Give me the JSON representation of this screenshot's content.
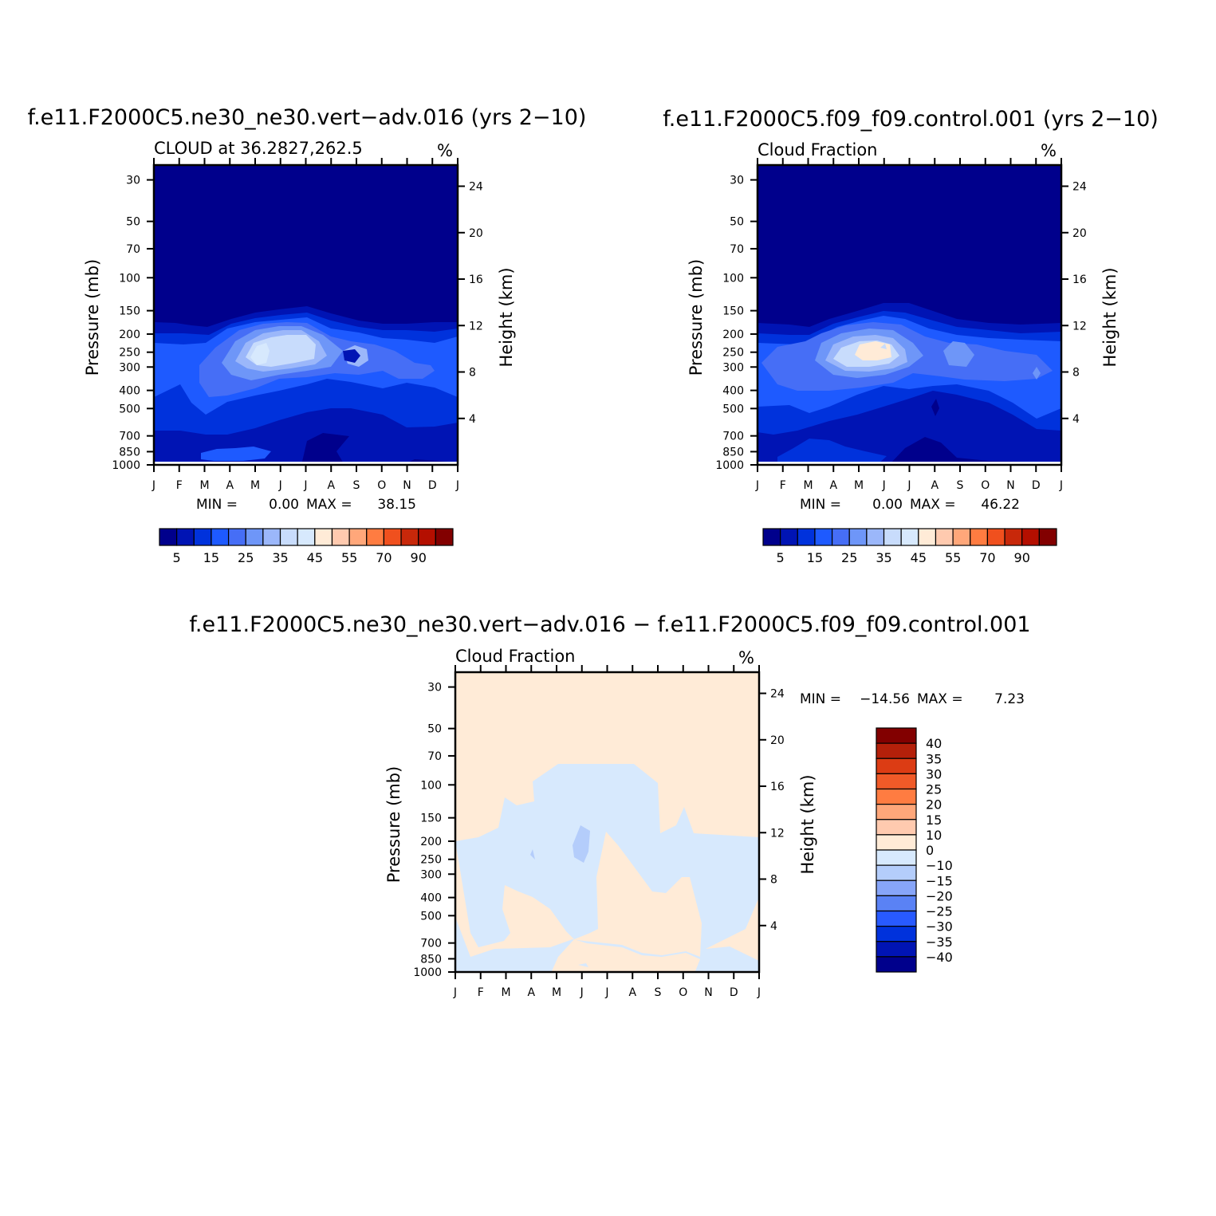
{
  "chart_data": [
    {
      "type": "heatmap",
      "id": "p1",
      "title": "f.e11.F2000C5.ne30_ne30.vert−adv.016 (yrs 2−10)",
      "subtitle": "CLOUD at 36.2827,262.5",
      "units": "%",
      "xlabel": "",
      "ylabel": "Pressure (mb)",
      "ylabel_right": "Height (km)",
      "x_ticks": [
        "J",
        "F",
        "M",
        "A",
        "M",
        "J",
        "J",
        "A",
        "S",
        "O",
        "N",
        "D",
        "J"
      ],
      "y_ticks": [
        "30",
        "50",
        "70",
        "100",
        "150",
        "200",
        "250",
        "300",
        "400",
        "500",
        "700",
        "850",
        "1000"
      ],
      "y_ticks_right": [
        "24",
        "20",
        "16",
        "12",
        "8",
        "4"
      ],
      "y_scale": "log",
      "ylim": [
        1000,
        25
      ],
      "stats": {
        "min_label": "MIN =",
        "min": "0.00",
        "max_label": "MAX =",
        "max": "38.15"
      },
      "colorbar": {
        "orientation": "horizontal",
        "labels": [
          "5",
          "15",
          "25",
          "35",
          "45",
          "55",
          "70",
          "90"
        ],
        "colors": [
          "#00008c",
          "#0014b4",
          "#0032dc",
          "#1e5aff",
          "#466ef6",
          "#6e96f8",
          "#9bb7fa",
          "#c8dcfc",
          "#d7e9fd",
          "#ffebd7",
          "#ffcaaf",
          "#ffa77a",
          "#ff7c41",
          "#f0501e",
          "#c8280a",
          "#b40f00",
          "#820000"
        ]
      },
      "max_value": 38.15,
      "min_value": 0.0
    },
    {
      "type": "heatmap",
      "id": "p2",
      "title": "f.e11.F2000C5.f09_f09.control.001 (yrs 2−10)",
      "subtitle": "Cloud Fraction",
      "units": "%",
      "xlabel": "",
      "ylabel": "Pressure (mb)",
      "ylabel_right": "Height (km)",
      "x_ticks": [
        "J",
        "F",
        "M",
        "A",
        "M",
        "J",
        "J",
        "A",
        "S",
        "O",
        "N",
        "D",
        "J"
      ],
      "y_ticks": [
        "30",
        "50",
        "70",
        "100",
        "150",
        "200",
        "250",
        "300",
        "400",
        "500",
        "700",
        "850",
        "1000"
      ],
      "y_ticks_right": [
        "24",
        "20",
        "16",
        "12",
        "8",
        "4"
      ],
      "y_scale": "log",
      "ylim": [
        1000,
        25
      ],
      "stats": {
        "min_label": "MIN =",
        "min": "0.00",
        "max_label": "MAX =",
        "max": "46.22"
      },
      "colorbar": {
        "orientation": "horizontal",
        "labels": [
          "5",
          "15",
          "25",
          "35",
          "45",
          "55",
          "70",
          "90"
        ],
        "colors": [
          "#00008c",
          "#0014b4",
          "#0032dc",
          "#1e5aff",
          "#466ef6",
          "#6e96f8",
          "#9bb7fa",
          "#c8dcfc",
          "#d7e9fd",
          "#ffebd7",
          "#ffcaaf",
          "#ffa77a",
          "#ff7c41",
          "#f0501e",
          "#c8280a",
          "#b40f00",
          "#820000"
        ]
      },
      "max_value": 46.22,
      "min_value": 0.0
    },
    {
      "type": "heatmap",
      "id": "p3",
      "title": "f.e11.F2000C5.ne30_ne30.vert−adv.016 − f.e11.F2000C5.f09_f09.control.001",
      "subtitle": "Cloud Fraction",
      "units": "%",
      "xlabel": "",
      "ylabel": "Pressure (mb)",
      "ylabel_right": "Height (km)",
      "x_ticks": [
        "J",
        "F",
        "M",
        "A",
        "M",
        "J",
        "J",
        "A",
        "S",
        "O",
        "N",
        "D",
        "J"
      ],
      "y_ticks": [
        "30",
        "50",
        "70",
        "100",
        "150",
        "200",
        "250",
        "300",
        "400",
        "500",
        "700",
        "850",
        "1000"
      ],
      "y_ticks_right": [
        "24",
        "20",
        "16",
        "12",
        "8",
        "4"
      ],
      "y_scale": "log",
      "ylim": [
        1000,
        25
      ],
      "stats": {
        "min_label": "MIN =",
        "min": "−14.56",
        "max_label": "MAX =",
        "max": "7.23"
      },
      "colorbar": {
        "orientation": "vertical",
        "labels": [
          "40",
          "35",
          "30",
          "25",
          "20",
          "15",
          "10",
          "0",
          "−10",
          "−15",
          "−20",
          "−25",
          "−30",
          "−35",
          "−40"
        ],
        "colors": [
          "#820000",
          "#b4200a",
          "#dc3c14",
          "#f05a28",
          "#ff7c41",
          "#ffa77a",
          "#ffcaaf",
          "#ffebd7",
          "#d7e9fd",
          "#b4cdfb",
          "#87a5f8",
          "#5a82f5",
          "#285aff",
          "#0032dc",
          "#0014b4",
          "#00008c"
        ]
      },
      "max_value": 7.23,
      "min_value": -14.56
    }
  ]
}
